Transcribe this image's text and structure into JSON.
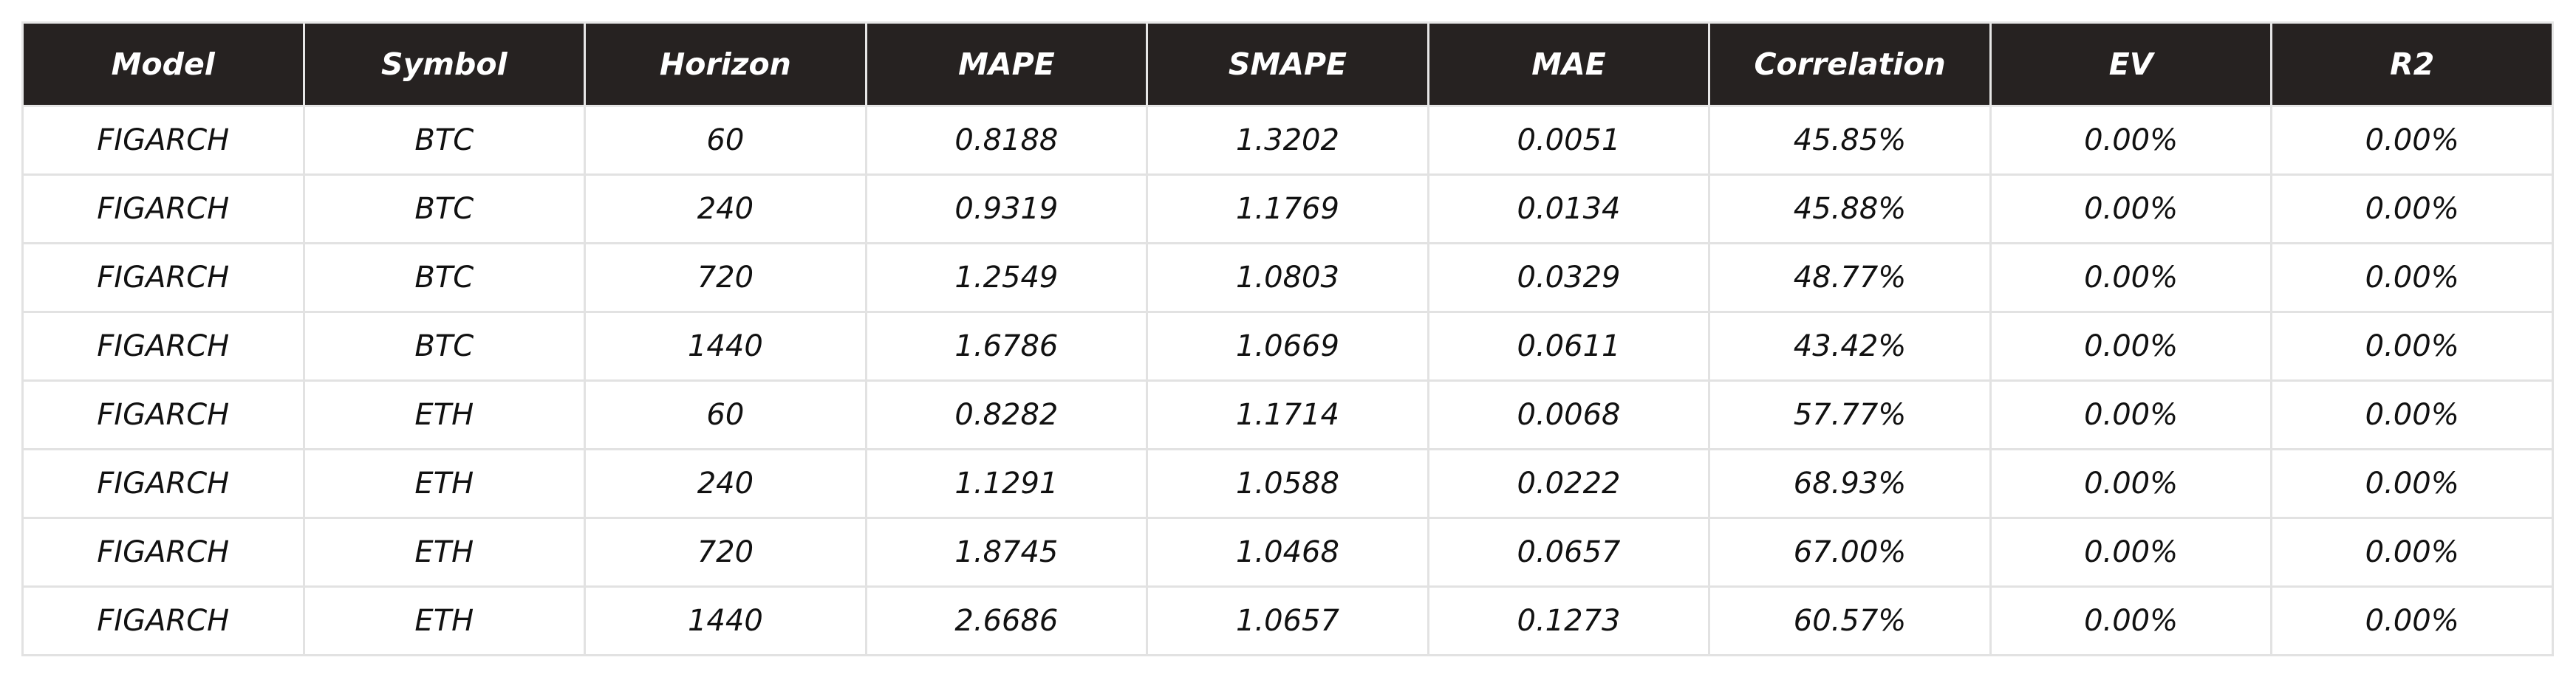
{
  "chart_data": {
    "type": "table",
    "columns": [
      "Model",
      "Symbol",
      "Horizon",
      "MAPE",
      "SMAPE",
      "MAE",
      "Correlation",
      "EV",
      "R2"
    ],
    "rows": [
      [
        "FIGARCH",
        "BTC",
        "60",
        "0.8188",
        "1.3202",
        "0.0051",
        "45.85%",
        "0.00%",
        "0.00%"
      ],
      [
        "FIGARCH",
        "BTC",
        "240",
        "0.9319",
        "1.1769",
        "0.0134",
        "45.88%",
        "0.00%",
        "0.00%"
      ],
      [
        "FIGARCH",
        "BTC",
        "720",
        "1.2549",
        "1.0803",
        "0.0329",
        "48.77%",
        "0.00%",
        "0.00%"
      ],
      [
        "FIGARCH",
        "BTC",
        "1440",
        "1.6786",
        "1.0669",
        "0.0611",
        "43.42%",
        "0.00%",
        "0.00%"
      ],
      [
        "FIGARCH",
        "ETH",
        "60",
        "0.8282",
        "1.1714",
        "0.0068",
        "57.77%",
        "0.00%",
        "0.00%"
      ],
      [
        "FIGARCH",
        "ETH",
        "240",
        "1.1291",
        "1.0588",
        "0.0222",
        "68.93%",
        "0.00%",
        "0.00%"
      ],
      [
        "FIGARCH",
        "ETH",
        "720",
        "1.8745",
        "1.0468",
        "0.0657",
        "67.00%",
        "0.00%",
        "0.00%"
      ],
      [
        "FIGARCH",
        "ETH",
        "1440",
        "2.6686",
        "1.0657",
        "0.1273",
        "60.57%",
        "0.00%",
        "0.00%"
      ]
    ],
    "header_color": "#262221",
    "header_text_color": "#ffffff",
    "border_color": "#e2e2e2"
  }
}
